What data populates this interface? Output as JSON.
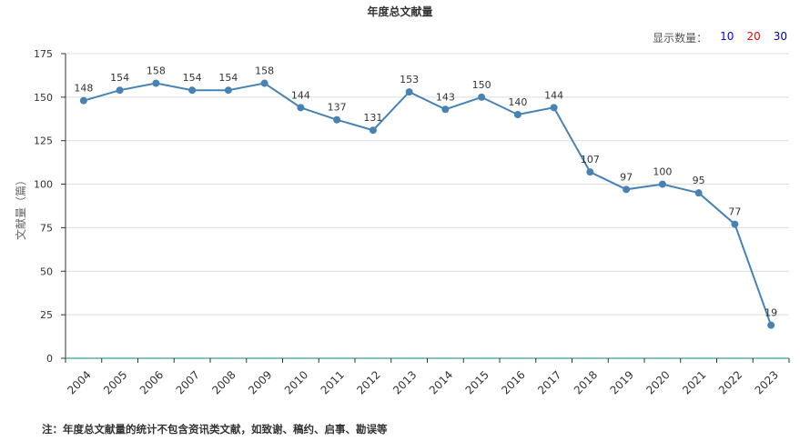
{
  "chart_data": {
    "type": "line",
    "title": "年度总文献量",
    "ylabel": "文献量（篇）",
    "xlabel": "",
    "categories": [
      "2004",
      "2005",
      "2006",
      "2007",
      "2008",
      "2009",
      "2010",
      "2011",
      "2012",
      "2013",
      "2014",
      "2015",
      "2016",
      "2017",
      "2018",
      "2019",
      "2020",
      "2021",
      "2022",
      "2023"
    ],
    "values": [
      148,
      154,
      158,
      154,
      154,
      158,
      144,
      137,
      131,
      153,
      143,
      150,
      140,
      144,
      107,
      97,
      100,
      95,
      77,
      19
    ],
    "ylim": [
      0,
      175
    ],
    "yticks": [
      0,
      25,
      50,
      75,
      100,
      125,
      150,
      175
    ],
    "grid": true,
    "line_color": "#4682b4"
  },
  "controls": {
    "display_count_label": "显示数量：",
    "options": [
      {
        "label": "10",
        "color": "#0000ff"
      },
      {
        "label": "20",
        "color": "#ff0000"
      },
      {
        "label": "30",
        "color": "#0000aa"
      }
    ]
  },
  "footnote": "注：年度总文献量的统计不包含资讯类文献，如致谢、稿约、启事、勘误等"
}
